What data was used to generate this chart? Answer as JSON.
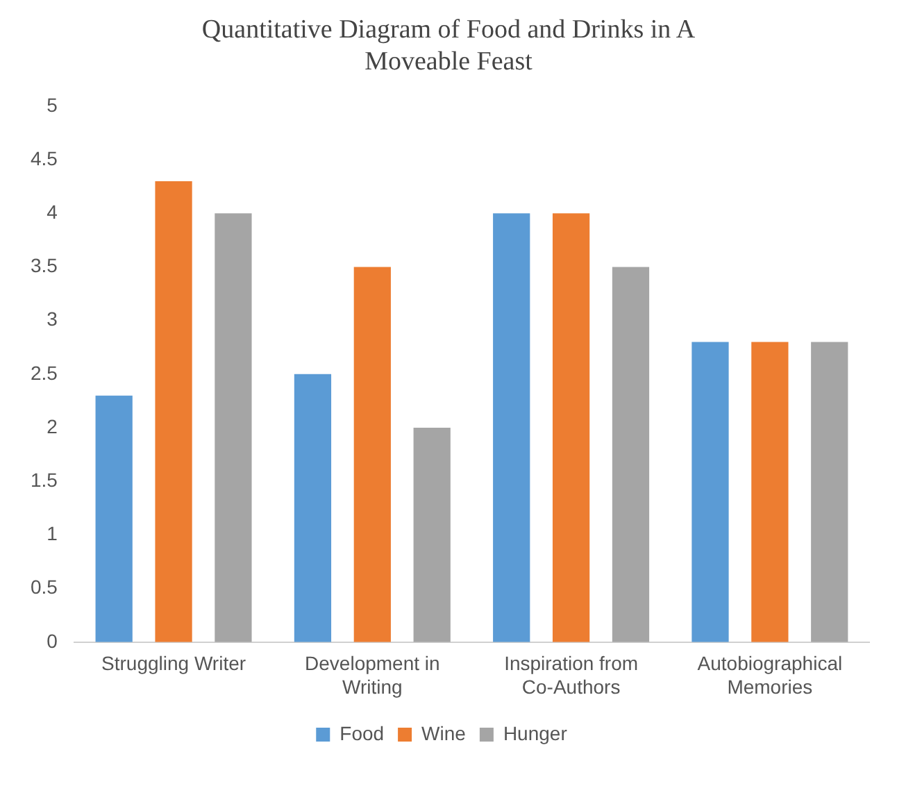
{
  "chart_data": {
    "type": "bar",
    "title": "Quantitative Diagram of Food and Drinks in A Moveable Feast",
    "categories": [
      "Struggling Writer",
      "Development in Writing",
      "Inspiration from Co-Authors",
      "Autobiographical Memories"
    ],
    "series": [
      {
        "name": "Food",
        "color": "#5b9bd5",
        "values": [
          2.3,
          2.5,
          4.0,
          2.8
        ]
      },
      {
        "name": "Wine",
        "color": "#ed7d31",
        "values": [
          4.3,
          3.5,
          4.0,
          2.8
        ]
      },
      {
        "name": "Hunger",
        "color": "#a5a5a5",
        "values": [
          4.0,
          2.0,
          3.5,
          2.8
        ]
      }
    ],
    "ylim": [
      0,
      5
    ],
    "yticks": [
      0,
      0.5,
      1,
      1.5,
      2,
      2.5,
      3,
      3.5,
      4,
      4.5,
      5
    ],
    "grid": false,
    "legend": "bottom"
  }
}
